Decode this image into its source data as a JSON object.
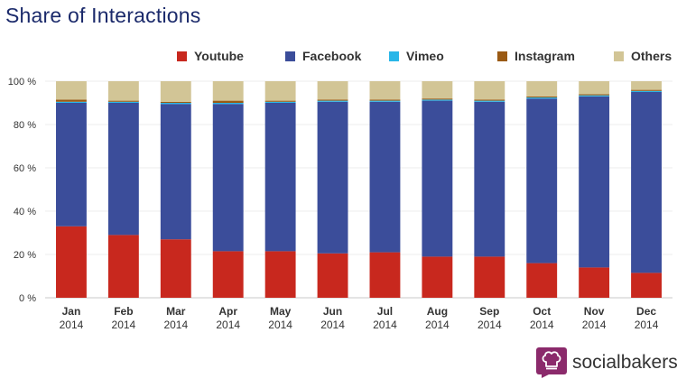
{
  "title": "Share of Interactions",
  "legend": [
    {
      "label": "Youtube",
      "color": "#c8281e"
    },
    {
      "label": "Facebook",
      "color": "#3b4d9a"
    },
    {
      "label": "Vimeo",
      "color": "#29b6e8"
    },
    {
      "label": "Instagram",
      "color": "#9a5a14"
    },
    {
      "label": "Others",
      "color": "#d2c596"
    }
  ],
  "brand": {
    "name": "socialbakers",
    "icon": "chef-hat-logo",
    "color": "#8b2a6b"
  },
  "chart_data": {
    "type": "bar",
    "stacked": true,
    "title": "Share of Interactions",
    "categories": [
      "Jan",
      "Feb",
      "Mar",
      "Apr",
      "May",
      "Jun",
      "Jul",
      "Aug",
      "Sep",
      "Oct",
      "Nov",
      "Dec"
    ],
    "category_years": [
      "2014",
      "2014",
      "2014",
      "2014",
      "2014",
      "2014",
      "2014",
      "2014",
      "2014",
      "2014",
      "2014",
      "2014"
    ],
    "ylim": [
      0,
      100
    ],
    "yticks": [
      "0 %",
      "20 %",
      "40 %",
      "60 %",
      "80 %",
      "100 %"
    ],
    "grid": true,
    "legend_position": "top-right",
    "series": [
      {
        "name": "Youtube",
        "color": "#c8281e",
        "values": [
          33,
          29,
          27,
          21.5,
          21.5,
          20.5,
          21,
          19,
          19,
          16,
          14,
          11.5
        ]
      },
      {
        "name": "Facebook",
        "color": "#3b4d9a",
        "values": [
          57,
          61,
          62.5,
          68,
          68.5,
          70,
          69.5,
          72,
          71.5,
          76,
          79,
          83.5
        ]
      },
      {
        "name": "Vimeo",
        "color": "#29b6e8",
        "values": [
          0.5,
          0.5,
          0.5,
          0.5,
          0.5,
          0.5,
          0.5,
          0.5,
          0.5,
          0.5,
          0.5,
          0.5
        ]
      },
      {
        "name": "Instagram",
        "color": "#9a5a14",
        "values": [
          1,
          0.5,
          0.5,
          1,
          0.5,
          0.5,
          0.5,
          0.5,
          0.5,
          0.5,
          0.5,
          0.5
        ]
      },
      {
        "name": "Others",
        "color": "#d2c596",
        "values": [
          8.5,
          9,
          9.5,
          9,
          9,
          8.5,
          8.5,
          8,
          8.5,
          7,
          6,
          4
        ]
      }
    ]
  }
}
